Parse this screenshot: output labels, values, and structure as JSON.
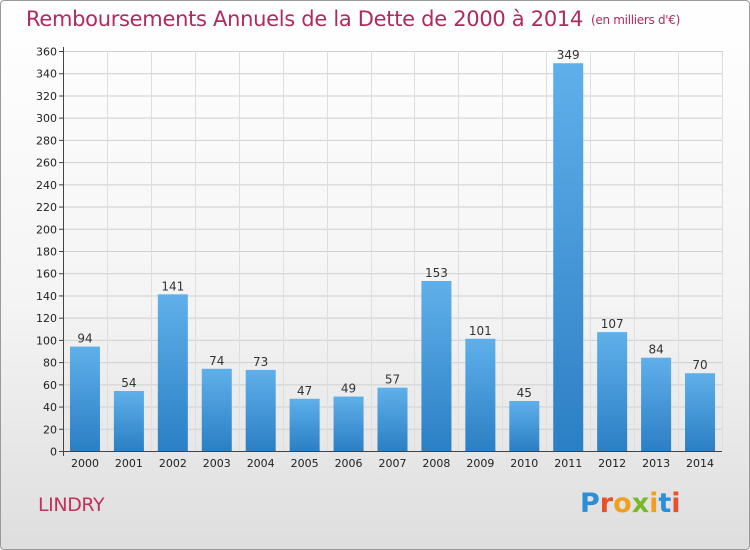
{
  "header": {
    "title": "Remboursements Annuels de la Dette de 2000 à 2014",
    "unit": "(en milliers d'€)"
  },
  "footer": {
    "commune": "LINDRY",
    "logo_text": "Proxiti"
  },
  "colors": {
    "title": "#b02a60",
    "bar_light": "#5fb0ea",
    "bar_dark": "#2b7fc4",
    "logo_letters": [
      "#2a8ed8",
      "#e8502a",
      "#f0a020",
      "#7ab82a",
      "#f0a020",
      "#2a8ed8",
      "#e8502a"
    ]
  },
  "chart_data": {
    "type": "bar",
    "title": "Remboursements Annuels de la Dette de 2000 à 2014",
    "subtitle": "(en milliers d'€)",
    "categories": [
      "2000",
      "2001",
      "2002",
      "2003",
      "2004",
      "2005",
      "2006",
      "2007",
      "2008",
      "2009",
      "2010",
      "2011",
      "2012",
      "2013",
      "2014"
    ],
    "values": [
      94,
      54,
      141,
      74,
      73,
      47,
      49,
      57,
      153,
      101,
      45,
      349,
      107,
      84,
      70
    ],
    "ylim": [
      0,
      360
    ],
    "yticks": [
      0,
      20,
      40,
      60,
      80,
      100,
      120,
      140,
      160,
      180,
      200,
      220,
      240,
      260,
      280,
      300,
      320,
      340,
      360
    ],
    "grid": true,
    "data_labels": true
  }
}
